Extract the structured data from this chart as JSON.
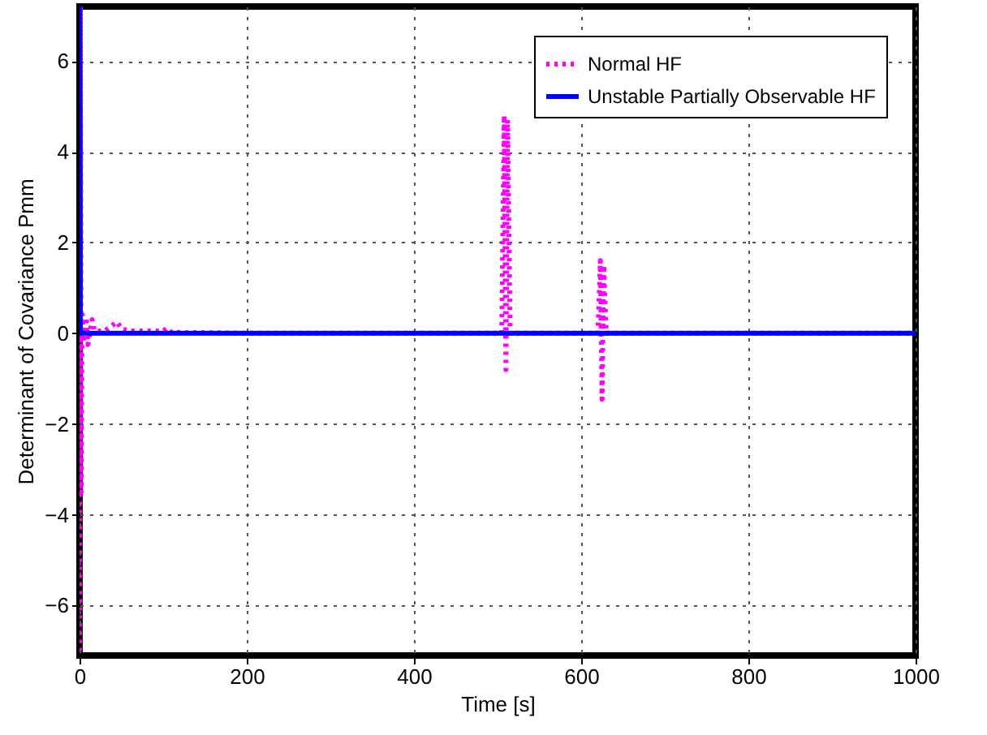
{
  "chart_data": {
    "type": "line",
    "xlabel": "Time [s]",
    "ylabel": "Determinant of Covariance Pmm",
    "xlim": [
      0,
      1000
    ],
    "ylim": [
      -7.1,
      7.2
    ],
    "xticks": [
      0,
      200,
      400,
      600,
      800,
      1000
    ],
    "yticks": [
      -6,
      -4,
      -2,
      0,
      2,
      4,
      6
    ],
    "grid": true,
    "legend": "top right",
    "series": [
      {
        "name": "Normal HF",
        "color": "#ff00ff",
        "line_style": "dotted",
        "x": [
          0,
          1,
          2,
          3,
          5,
          8,
          10,
          15,
          18,
          30,
          45,
          50,
          60,
          100,
          105,
          110,
          200,
          505,
          508,
          510,
          512,
          515,
          620,
          623,
          625,
          627,
          630,
          1000
        ],
        "values": [
          -7,
          7.2,
          -3.5,
          0.5,
          -0.2,
          0.35,
          -0.25,
          0.3,
          0.05,
          0.05,
          0.25,
          0.1,
          0.05,
          0.05,
          0.12,
          0.02,
          0,
          0,
          4.8,
          -0.8,
          4.7,
          0,
          0,
          1.6,
          -1.45,
          1.5,
          0,
          0
        ]
      },
      {
        "name": "Unstable Partially Observable HF",
        "color": "#0000ff",
        "line_style": "solid",
        "x": [
          0,
          1,
          1000
        ],
        "values": [
          7.2,
          0,
          0
        ]
      }
    ]
  }
}
